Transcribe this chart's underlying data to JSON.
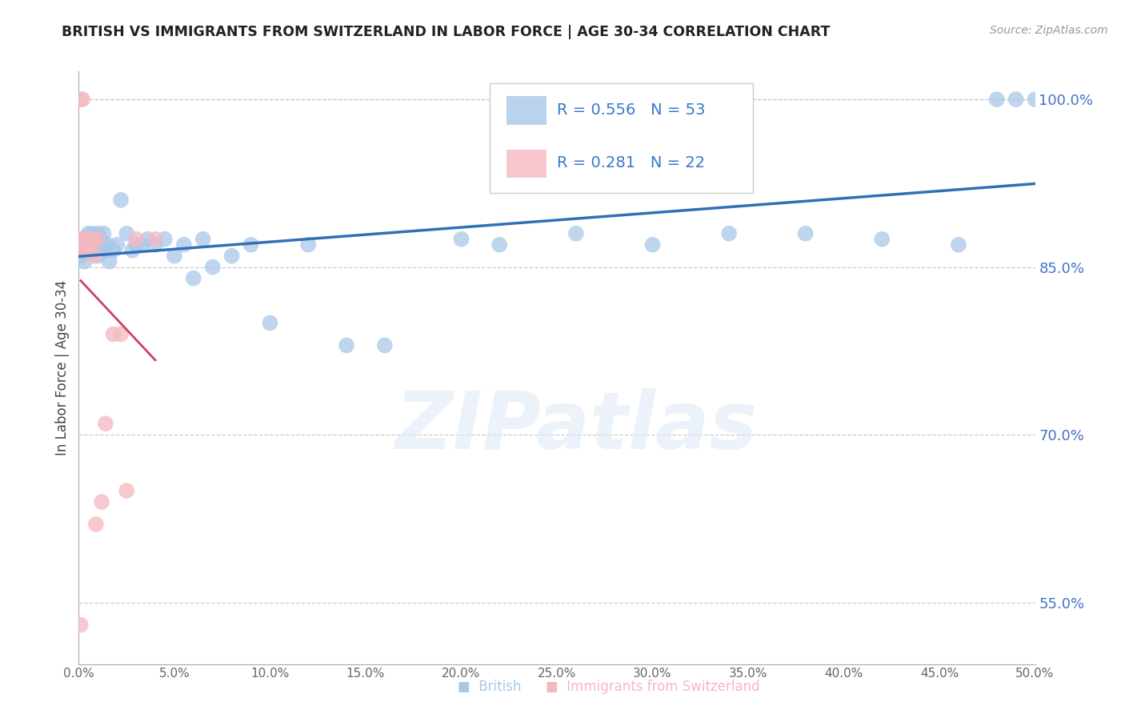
{
  "title": "BRITISH VS IMMIGRANTS FROM SWITZERLAND IN LABOR FORCE | AGE 30-34 CORRELATION CHART",
  "source": "Source: ZipAtlas.com",
  "ylabel": "In Labor Force | Age 30-34",
  "watermark": "ZIPatlas",
  "xlim": [
    0.0,
    0.5
  ],
  "ylim": [
    0.495,
    1.025
  ],
  "yticks_right": [
    1.0,
    0.85,
    0.7,
    0.55
  ],
  "ytick_labels_right": [
    "100.0%",
    "85.0%",
    "70.0%",
    "55.0%"
  ],
  "xticks": [
    0.0,
    0.05,
    0.1,
    0.15,
    0.2,
    0.25,
    0.3,
    0.35,
    0.4,
    0.45,
    0.5
  ],
  "xtick_labels": [
    "0.0%",
    "5.0%",
    "10.0%",
    "15.0%",
    "20.0%",
    "25.0%",
    "30.0%",
    "35.0%",
    "40.0%",
    "45.0%",
    "50.0%"
  ],
  "legend_r_british": "0.556",
  "legend_n_british": "53",
  "legend_r_swiss": "0.281",
  "legend_n_swiss": "22",
  "british_color": "#a8c8e8",
  "swiss_color": "#f4b8c0",
  "british_line_color": "#3070b8",
  "swiss_line_color": "#d04060",
  "british_x": [
    0.001,
    0.002,
    0.003,
    0.003,
    0.004,
    0.004,
    0.005,
    0.005,
    0.006,
    0.007,
    0.007,
    0.008,
    0.009,
    0.01,
    0.01,
    0.011,
    0.012,
    0.013,
    0.014,
    0.015,
    0.016,
    0.018,
    0.02,
    0.022,
    0.025,
    0.028,
    0.03,
    0.033,
    0.036,
    0.04,
    0.045,
    0.05,
    0.055,
    0.06,
    0.065,
    0.07,
    0.08,
    0.09,
    0.1,
    0.12,
    0.14,
    0.16,
    0.2,
    0.22,
    0.26,
    0.3,
    0.34,
    0.38,
    0.42,
    0.46,
    0.48,
    0.49,
    0.5
  ],
  "british_y": [
    0.86,
    0.87,
    0.875,
    0.855,
    0.87,
    0.875,
    0.88,
    0.865,
    0.87,
    0.865,
    0.88,
    0.875,
    0.87,
    0.88,
    0.86,
    0.875,
    0.87,
    0.88,
    0.865,
    0.87,
    0.855,
    0.865,
    0.87,
    0.91,
    0.88,
    0.865,
    0.87,
    0.87,
    0.875,
    0.87,
    0.875,
    0.86,
    0.87,
    0.84,
    0.875,
    0.85,
    0.86,
    0.87,
    0.8,
    0.87,
    0.78,
    0.78,
    0.875,
    0.87,
    0.88,
    0.87,
    0.88,
    0.88,
    0.875,
    0.87,
    1.0,
    1.0,
    1.0
  ],
  "swiss_x": [
    0.001,
    0.001,
    0.002,
    0.002,
    0.003,
    0.003,
    0.003,
    0.004,
    0.005,
    0.005,
    0.006,
    0.007,
    0.008,
    0.009,
    0.01,
    0.012,
    0.014,
    0.018,
    0.022,
    0.025,
    0.03,
    0.04
  ],
  "swiss_y": [
    0.53,
    1.0,
    1.0,
    0.875,
    0.875,
    0.87,
    0.865,
    0.875,
    0.87,
    0.865,
    0.87,
    0.875,
    0.86,
    0.62,
    0.875,
    0.64,
    0.71,
    0.79,
    0.79,
    0.65,
    0.875,
    0.875
  ]
}
